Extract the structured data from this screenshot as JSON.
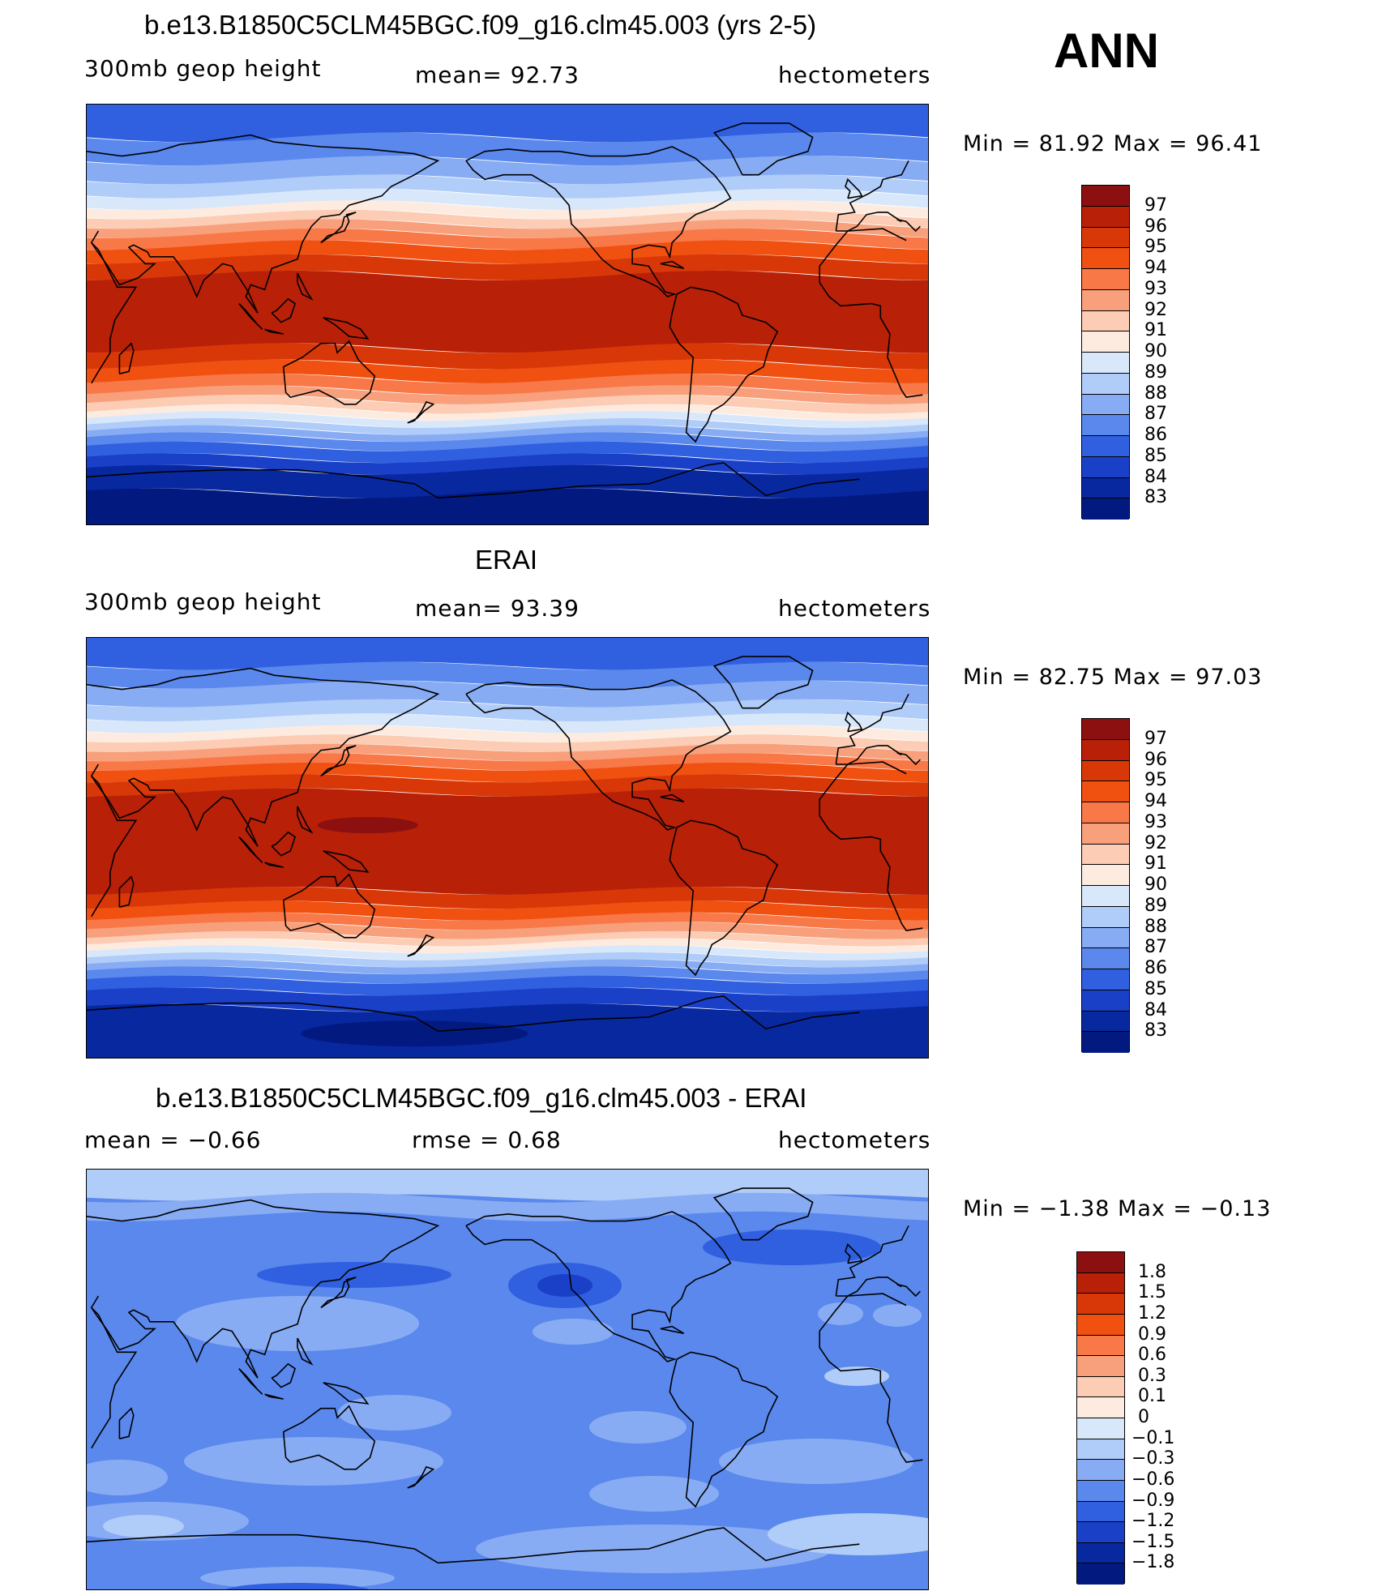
{
  "season": "ANN",
  "panels": [
    {
      "title": "b.e13.B1850C5CLM45BGC.f09_g16.clm45.003 (yrs 2-5)",
      "left": "300mb  geop  height",
      "mid": "mean=   92.73",
      "right": "hectometers",
      "minmax": "Min  =    81.92  Max  =    96.41",
      "levels": [
        "97",
        "96",
        "95",
        "94",
        "93",
        "92",
        "91",
        "90",
        "89",
        "88",
        "87",
        "86",
        "85",
        "84",
        "83"
      ],
      "colors": [
        "#8c1010",
        "#b82008",
        "#d83808",
        "#f05010",
        "#f87848",
        "#f8a07c",
        "#fcccb4",
        "#fdebe0",
        "#d8e8fa",
        "#b0ccf8",
        "#88acf4",
        "#5a88ec",
        "#3060e0",
        "#1a40c8",
        "#0828a0",
        "#021a80"
      ],
      "field": "model"
    },
    {
      "title": "ERAI",
      "left": "300mb  geop  height",
      "mid": "mean=   93.39",
      "right": "hectometers",
      "minmax": "Min  =    82.75  Max  =    97.03",
      "levels": [
        "97",
        "96",
        "95",
        "94",
        "93",
        "92",
        "91",
        "90",
        "89",
        "88",
        "87",
        "86",
        "85",
        "84",
        "83"
      ],
      "colors": [
        "#8c1010",
        "#b82008",
        "#d83808",
        "#f05010",
        "#f87848",
        "#f8a07c",
        "#fcccb4",
        "#fdebe0",
        "#d8e8fa",
        "#b0ccf8",
        "#88acf4",
        "#5a88ec",
        "#3060e0",
        "#1a40c8",
        "#0828a0",
        "#021a80"
      ],
      "field": "obs"
    },
    {
      "title": "b.e13.B1850C5CLM45BGC.f09_g16.clm45.003 - ERAI",
      "left": "mean  =    −0.66",
      "mid": "rmse  =     0.68",
      "right": "hectometers",
      "minmax": "Min  =   −1.38  Max  =    −0.13",
      "levels": [
        "1.8",
        "1.5",
        "1.2",
        "0.9",
        "0.6",
        "0.3",
        "0.1",
        "0",
        "−0.1",
        "−0.3",
        "−0.6",
        "−0.9",
        "−1.2",
        "−1.5",
        "−1.8"
      ],
      "colors": [
        "#8c1010",
        "#b82008",
        "#d83808",
        "#f05010",
        "#f87848",
        "#f8a07c",
        "#fcccb4",
        "#fdebe0",
        "#d8e8fa",
        "#b0ccf8",
        "#88acf4",
        "#5a88ec",
        "#3060e0",
        "#1a40c8",
        "#0828a0",
        "#021a80"
      ],
      "field": "diff"
    }
  ]
}
